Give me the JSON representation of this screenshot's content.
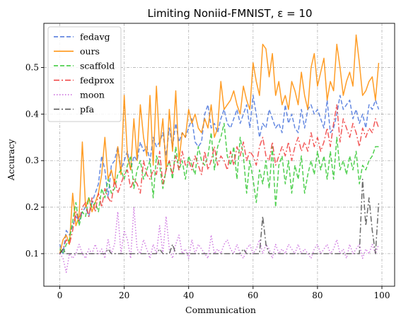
{
  "chart_data": {
    "type": "line",
    "title": "Limiting Noniid-FMNIST, ε = 10",
    "xlabel": "Communication",
    "ylabel": "Accuracy",
    "xlim": [
      -4.95,
      103.95
    ],
    "ylim": [
      0.03,
      0.595
    ],
    "xticks": [
      0,
      20,
      40,
      60,
      80,
      100
    ],
    "yticks": [
      0.1,
      0.2,
      0.3,
      0.4,
      0.5
    ],
    "grid": true,
    "legend": "top-left",
    "x": [
      0,
      1,
      2,
      3,
      4,
      5,
      6,
      7,
      8,
      9,
      10,
      11,
      12,
      13,
      14,
      15,
      16,
      17,
      18,
      19,
      20,
      21,
      22,
      23,
      24,
      25,
      26,
      27,
      28,
      29,
      30,
      31,
      32,
      33,
      34,
      35,
      36,
      37,
      38,
      39,
      40,
      41,
      42,
      43,
      44,
      45,
      46,
      47,
      48,
      49,
      50,
      51,
      52,
      53,
      54,
      55,
      56,
      57,
      58,
      59,
      60,
      61,
      62,
      63,
      64,
      65,
      66,
      67,
      68,
      69,
      70,
      71,
      72,
      73,
      74,
      75,
      76,
      77,
      78,
      79,
      80,
      81,
      82,
      83,
      84,
      85,
      86,
      87,
      88,
      89,
      90,
      91,
      92,
      93,
      94,
      95,
      96,
      97,
      98,
      99
    ],
    "series": [
      {
        "name": "fedavg",
        "color": "#4a74dc",
        "dash": "6 3",
        "values": [
          0.12,
          0.1,
          0.15,
          0.14,
          0.16,
          0.18,
          0.17,
          0.19,
          0.2,
          0.18,
          0.21,
          0.23,
          0.25,
          0.31,
          0.28,
          0.22,
          0.29,
          0.3,
          0.33,
          0.28,
          0.3,
          0.32,
          0.28,
          0.31,
          0.3,
          0.34,
          0.32,
          0.33,
          0.3,
          0.35,
          0.33,
          0.34,
          0.36,
          0.31,
          0.37,
          0.33,
          0.38,
          0.34,
          0.36,
          0.35,
          0.37,
          0.39,
          0.34,
          0.33,
          0.34,
          0.4,
          0.42,
          0.37,
          0.38,
          0.36,
          0.39,
          0.41,
          0.38,
          0.37,
          0.39,
          0.41,
          0.38,
          0.4,
          0.42,
          0.37,
          0.44,
          0.4,
          0.35,
          0.38,
          0.37,
          0.41,
          0.39,
          0.37,
          0.38,
          0.36,
          0.42,
          0.38,
          0.4,
          0.37,
          0.36,
          0.41,
          0.37,
          0.41,
          0.42,
          0.4,
          0.41,
          0.39,
          0.37,
          0.43,
          0.36,
          0.37,
          0.4,
          0.44,
          0.41,
          0.42,
          0.43,
          0.39,
          0.41,
          0.38,
          0.4,
          0.37,
          0.42,
          0.41,
          0.43,
          0.41
        ]
      },
      {
        "name": "ours",
        "color": "#ff8c00",
        "dash": "",
        "values": [
          0.1,
          0.13,
          0.14,
          0.12,
          0.23,
          0.16,
          0.18,
          0.34,
          0.2,
          0.22,
          0.19,
          0.21,
          0.23,
          0.27,
          0.35,
          0.26,
          0.28,
          0.25,
          0.33,
          0.27,
          0.44,
          0.31,
          0.28,
          0.39,
          0.3,
          0.42,
          0.35,
          0.31,
          0.44,
          0.29,
          0.46,
          0.33,
          0.39,
          0.28,
          0.41,
          0.32,
          0.45,
          0.3,
          0.36,
          0.35,
          0.41,
          0.38,
          0.4,
          0.37,
          0.36,
          0.39,
          0.37,
          0.42,
          0.35,
          0.37,
          0.47,
          0.41,
          0.42,
          0.43,
          0.45,
          0.42,
          0.4,
          0.46,
          0.43,
          0.41,
          0.51,
          0.47,
          0.44,
          0.55,
          0.54,
          0.48,
          0.53,
          0.44,
          0.47,
          0.42,
          0.44,
          0.41,
          0.47,
          0.45,
          0.42,
          0.49,
          0.44,
          0.41,
          0.5,
          0.53,
          0.46,
          0.49,
          0.52,
          0.43,
          0.47,
          0.45,
          0.55,
          0.5,
          0.44,
          0.47,
          0.49,
          0.46,
          0.57,
          0.51,
          0.44,
          0.45,
          0.47,
          0.48,
          0.43,
          0.51
        ]
      },
      {
        "name": "scaffold",
        "color": "#32c832",
        "dash": "6 3",
        "values": [
          0.11,
          0.1,
          0.12,
          0.13,
          0.17,
          0.21,
          0.16,
          0.19,
          0.18,
          0.22,
          0.2,
          0.21,
          0.19,
          0.24,
          0.22,
          0.26,
          0.23,
          0.24,
          0.27,
          0.28,
          0.26,
          0.29,
          0.31,
          0.24,
          0.28,
          0.3,
          0.26,
          0.28,
          0.3,
          0.22,
          0.31,
          0.29,
          0.24,
          0.28,
          0.3,
          0.26,
          0.33,
          0.28,
          0.3,
          0.26,
          0.31,
          0.29,
          0.27,
          0.33,
          0.3,
          0.29,
          0.31,
          0.36,
          0.28,
          0.33,
          0.35,
          0.38,
          0.31,
          0.29,
          0.33,
          0.26,
          0.35,
          0.31,
          0.23,
          0.3,
          0.26,
          0.21,
          0.28,
          0.25,
          0.3,
          0.24,
          0.33,
          0.2,
          0.29,
          0.31,
          0.25,
          0.3,
          0.23,
          0.29,
          0.26,
          0.31,
          0.23,
          0.27,
          0.3,
          0.27,
          0.32,
          0.28,
          0.31,
          0.26,
          0.32,
          0.26,
          0.35,
          0.28,
          0.3,
          0.27,
          0.31,
          0.28,
          0.32,
          0.25,
          0.29,
          0.28,
          0.3,
          0.31,
          0.33,
          0.33
        ]
      },
      {
        "name": "fedprox",
        "color": "#f03c3c",
        "dash": "8 3 2 3",
        "values": [
          0.1,
          0.11,
          0.13,
          0.12,
          0.15,
          0.19,
          0.17,
          0.2,
          0.21,
          0.18,
          0.22,
          0.19,
          0.23,
          0.2,
          0.24,
          0.22,
          0.21,
          0.26,
          0.23,
          0.25,
          0.27,
          0.28,
          0.24,
          0.26,
          0.25,
          0.23,
          0.3,
          0.27,
          0.26,
          0.28,
          0.27,
          0.32,
          0.25,
          0.28,
          0.3,
          0.27,
          0.31,
          0.28,
          0.32,
          0.29,
          0.3,
          0.28,
          0.31,
          0.29,
          0.27,
          0.32,
          0.28,
          0.3,
          0.33,
          0.29,
          0.31,
          0.3,
          0.28,
          0.32,
          0.29,
          0.33,
          0.31,
          0.34,
          0.3,
          0.32,
          0.31,
          0.29,
          0.33,
          0.35,
          0.31,
          0.3,
          0.34,
          0.29,
          0.31,
          0.33,
          0.31,
          0.34,
          0.3,
          0.33,
          0.35,
          0.32,
          0.34,
          0.32,
          0.36,
          0.33,
          0.35,
          0.32,
          0.34,
          0.37,
          0.33,
          0.38,
          0.42,
          0.34,
          0.39,
          0.37,
          0.35,
          0.38,
          0.36,
          0.33,
          0.37,
          0.35,
          0.37,
          0.36,
          0.39,
          0.37
        ]
      },
      {
        "name": "moon",
        "color": "#c864dc",
        "dash": "1.5 2.5",
        "values": [
          0.1,
          0.09,
          0.06,
          0.1,
          0.09,
          0.1,
          0.12,
          0.1,
          0.09,
          0.11,
          0.1,
          0.12,
          0.1,
          0.11,
          0.09,
          0.13,
          0.1,
          0.12,
          0.19,
          0.1,
          0.15,
          0.13,
          0.09,
          0.2,
          0.11,
          0.1,
          0.13,
          0.11,
          0.09,
          0.12,
          0.1,
          0.16,
          0.1,
          0.18,
          0.11,
          0.09,
          0.12,
          0.14,
          0.1,
          0.11,
          0.09,
          0.13,
          0.1,
          0.12,
          0.11,
          0.1,
          0.09,
          0.14,
          0.1,
          0.11,
          0.1,
          0.12,
          0.13,
          0.11,
          0.1,
          0.12,
          0.1,
          0.09,
          0.11,
          0.12,
          0.1,
          0.11,
          0.13,
          0.1,
          0.12,
          0.11,
          0.09,
          0.12,
          0.1,
          0.11,
          0.1,
          0.12,
          0.11,
          0.1,
          0.12,
          0.1,
          0.11,
          0.1,
          0.09,
          0.11,
          0.12,
          0.1,
          0.11,
          0.12,
          0.1,
          0.11,
          0.13,
          0.1,
          0.11,
          0.09,
          0.12,
          0.1,
          0.11,
          0.12,
          0.09,
          0.11,
          0.1,
          0.12,
          0.1,
          0.12
        ]
      },
      {
        "name": "pfa",
        "color": "#505050",
        "dash": "8 3 2 3",
        "values": [
          0.1,
          0.11,
          0.1,
          0.1,
          0.1,
          0.1,
          0.1,
          0.1,
          0.1,
          0.1,
          0.1,
          0.1,
          0.1,
          0.1,
          0.1,
          0.11,
          0.1,
          0.1,
          0.1,
          0.1,
          0.1,
          0.1,
          0.1,
          0.1,
          0.1,
          0.1,
          0.1,
          0.1,
          0.1,
          0.1,
          0.1,
          0.11,
          0.1,
          0.1,
          0.1,
          0.12,
          0.1,
          0.1,
          0.1,
          0.1,
          0.1,
          0.1,
          0.1,
          0.1,
          0.1,
          0.1,
          0.1,
          0.1,
          0.1,
          0.1,
          0.1,
          0.1,
          0.1,
          0.1,
          0.1,
          0.1,
          0.1,
          0.11,
          0.1,
          0.1,
          0.1,
          0.1,
          0.1,
          0.18,
          0.12,
          0.1,
          0.1,
          0.1,
          0.1,
          0.1,
          0.1,
          0.1,
          0.1,
          0.1,
          0.1,
          0.1,
          0.1,
          0.1,
          0.1,
          0.1,
          0.1,
          0.1,
          0.1,
          0.1,
          0.1,
          0.1,
          0.1,
          0.1,
          0.1,
          0.1,
          0.1,
          0.1,
          0.1,
          0.1,
          0.26,
          0.16,
          0.22,
          0.15,
          0.1,
          0.21
        ]
      }
    ]
  }
}
